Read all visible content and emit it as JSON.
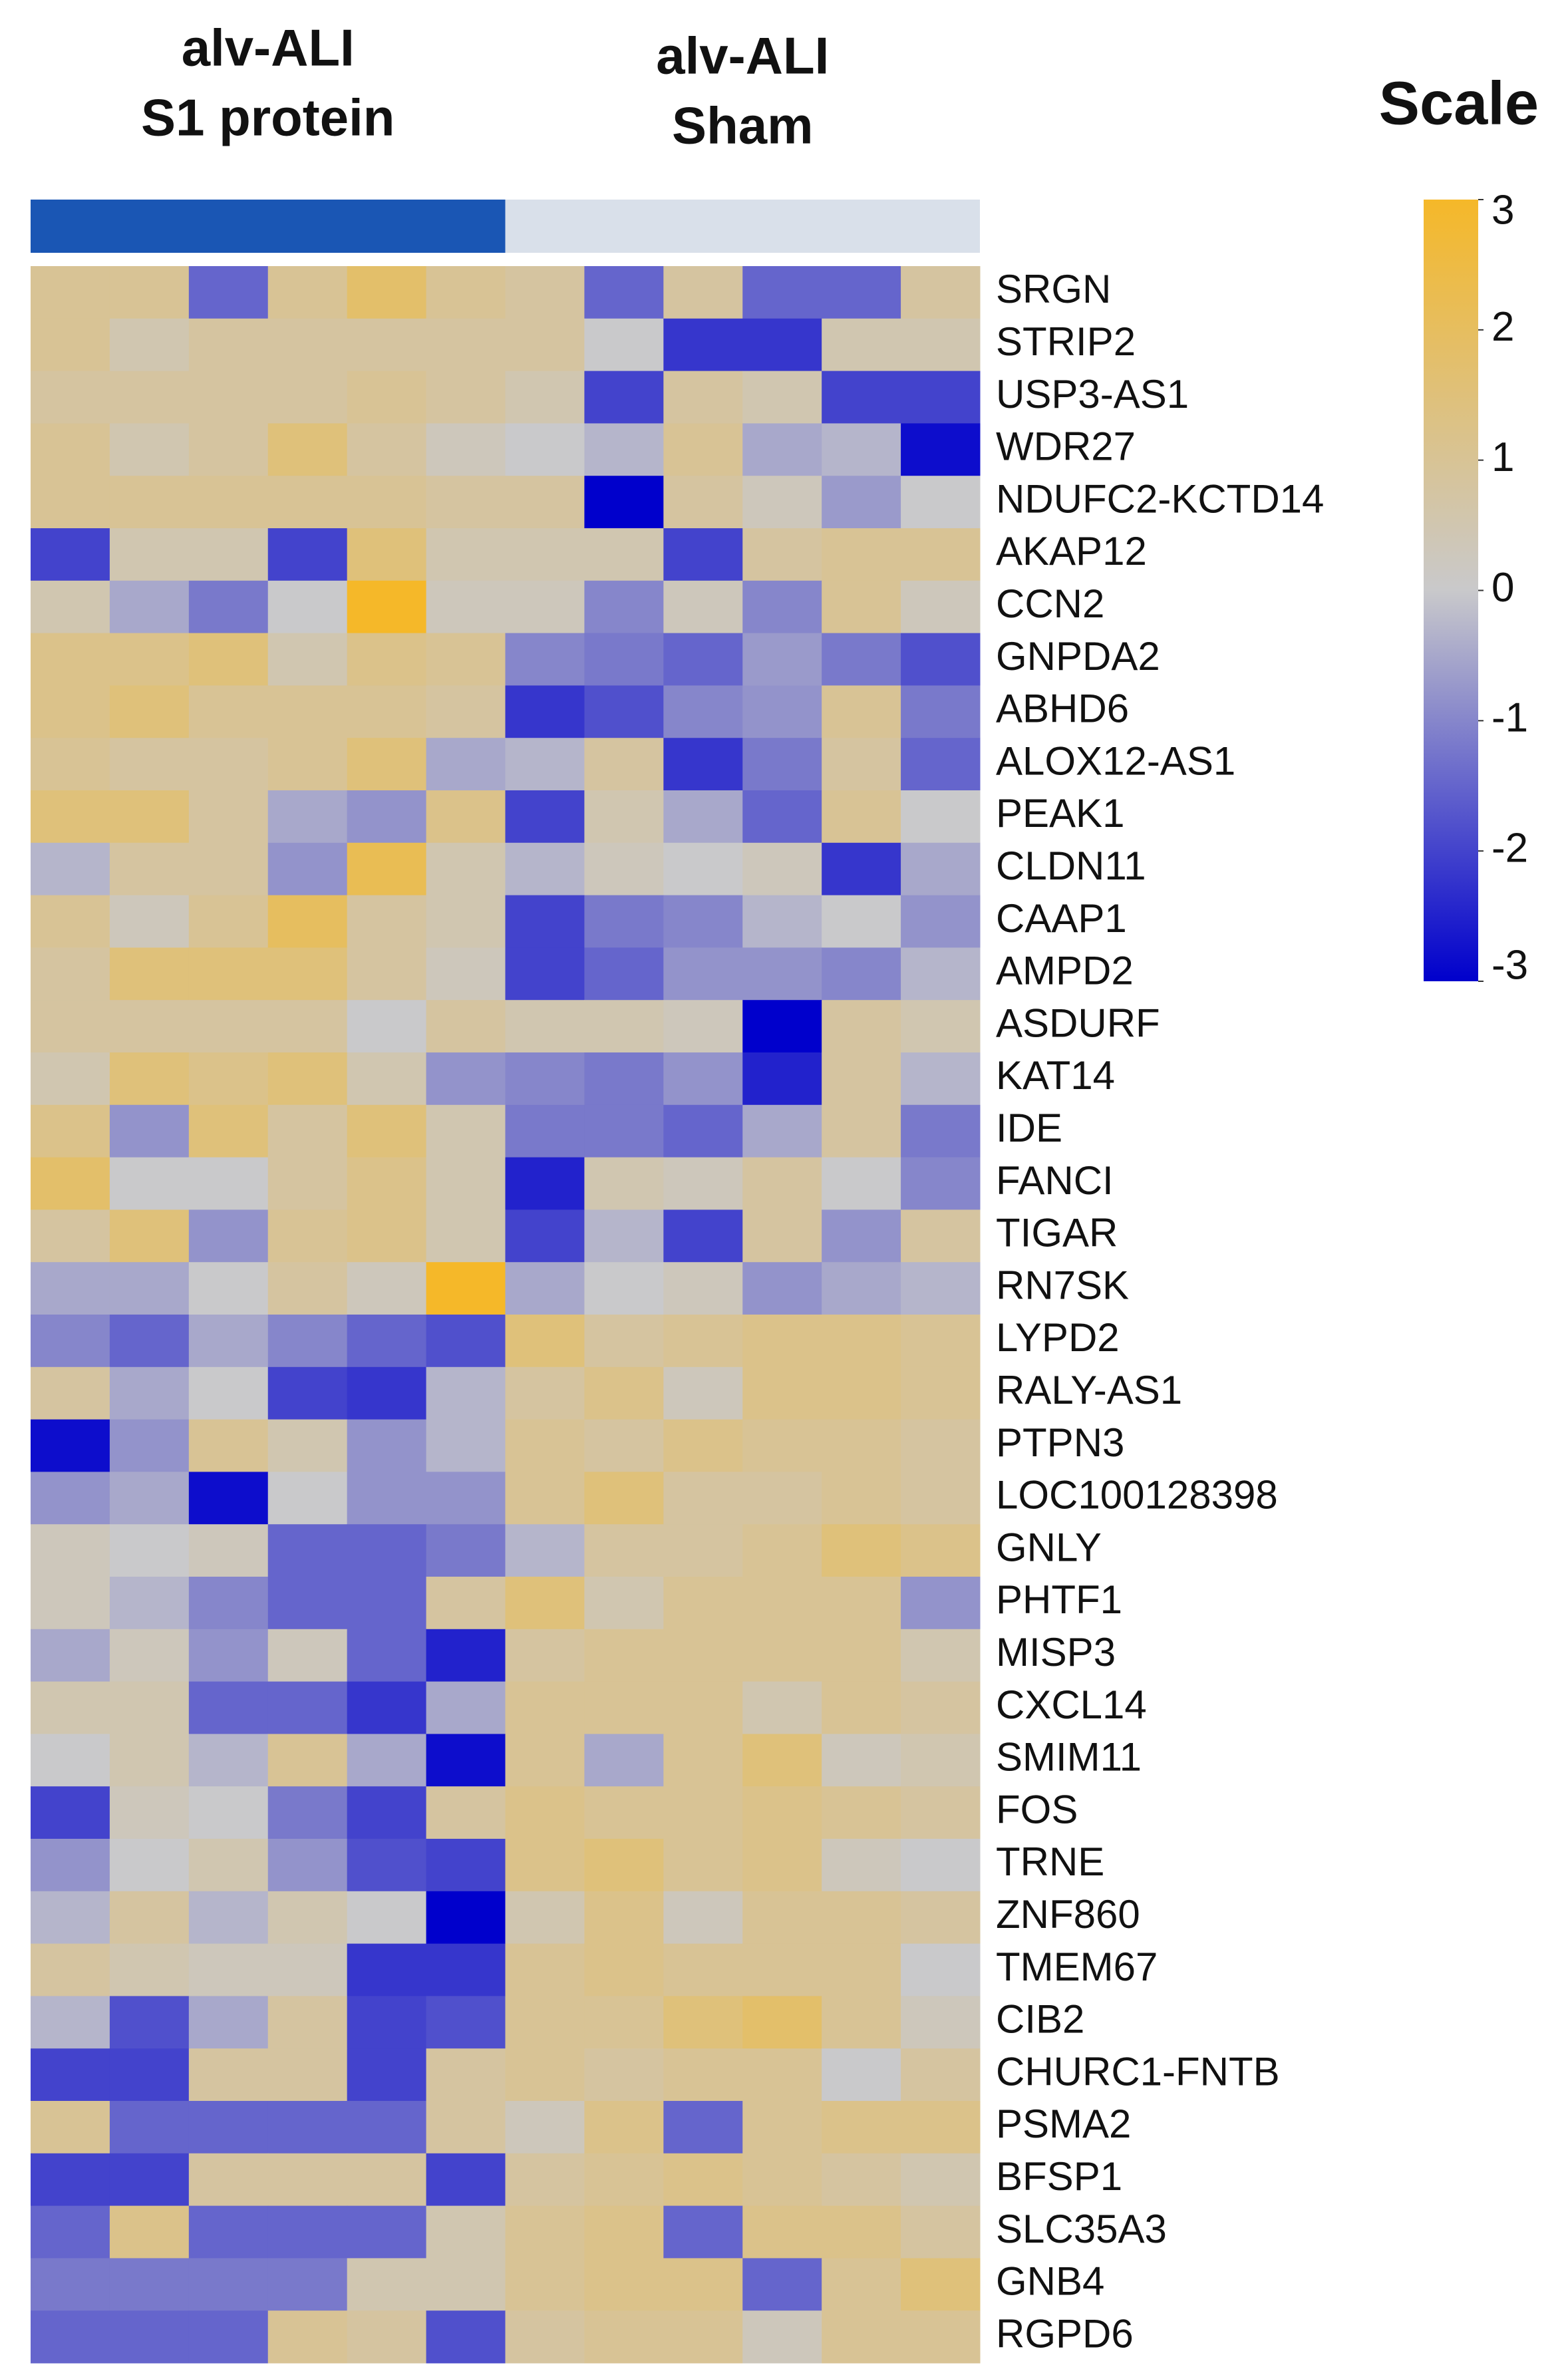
{
  "chart_data": {
    "type": "heatmap",
    "groups": [
      {
        "label": [
          "alv-ALI",
          "S1 protein"
        ],
        "color": "#1a56b4",
        "count": 6
      },
      {
        "label": [
          "alv-ALI",
          "Sham"
        ],
        "color": "#d9e0ea",
        "count": 6
      }
    ],
    "rows": [
      "SRGN",
      "STRIP2",
      "USP3-AS1",
      "WDR27",
      "NDUFC2-KCTD14",
      "AKAP12",
      "CCN2",
      "GNPDA2",
      "ABHD6",
      "ALOX12-AS1",
      "PEAK1",
      "CLDN11",
      "CAAP1",
      "AMPD2",
      "ASDURF",
      "KAT14",
      "IDE",
      "FANCI",
      "TIGAR",
      "RN7SK",
      "LYPD2",
      "RALY-AS1",
      "PTPN3",
      "LOC100128398",
      "GNLY",
      "PHTF1",
      "MISP3",
      "CXCL14",
      "SMIM11",
      "FOS",
      "TRNE",
      "ZNF860",
      "TMEM67",
      "CIB2",
      "CHURC1-FNTB",
      "PSMA2",
      "BFSP1",
      "SLC35A3",
      "GNB4",
      "RGPD6"
    ],
    "values": [
      [
        1,
        1,
        -1.5,
        1,
        1.8,
        1,
        0.8,
        -1.5,
        0.8,
        -1.5,
        -1.5,
        0.8
      ],
      [
        1,
        0.5,
        0.8,
        0.8,
        0.8,
        0.8,
        0.8,
        0,
        -2.2,
        -2.2,
        0.5,
        0.5
      ],
      [
        0.8,
        0.8,
        0.8,
        0.8,
        1,
        0.8,
        0.5,
        -2,
        0.8,
        0.5,
        -2,
        -2
      ],
      [
        1,
        0.5,
        0.8,
        1.5,
        0.8,
        0.3,
        0,
        -0.3,
        1,
        -0.5,
        -0.3,
        -2.8
      ],
      [
        1,
        1,
        1,
        1,
        1,
        0.8,
        0.8,
        -3,
        0.8,
        0.3,
        -0.7,
        0
      ],
      [
        -2,
        0.5,
        0.5,
        -2,
        1.5,
        0.5,
        0.5,
        0.5,
        -2,
        0.8,
        1,
        1
      ],
      [
        0.5,
        -0.5,
        -1.2,
        0,
        3,
        0.3,
        0.3,
        -1,
        0.3,
        -1,
        1,
        0.3
      ],
      [
        1.2,
        1.2,
        1.5,
        0.5,
        1.2,
        1,
        -1,
        -1.2,
        -1.5,
        -0.7,
        -1.2,
        -1.8
      ],
      [
        1.2,
        1.5,
        1,
        1,
        1,
        0.8,
        -2.2,
        -1.8,
        -1,
        -0.8,
        1,
        -1.2
      ],
      [
        1,
        0.8,
        0.8,
        1,
        1.5,
        -0.5,
        -0.3,
        0.8,
        -2.2,
        -1.2,
        0.8,
        -1.5
      ],
      [
        1.5,
        1.5,
        0.8,
        -0.5,
        -0.8,
        1.2,
        -2,
        0.5,
        -0.5,
        -1.5,
        1,
        0
      ],
      [
        -0.3,
        0.8,
        0.8,
        -0.8,
        2.2,
        0.5,
        -0.3,
        0.3,
        0,
        0.3,
        -2.2,
        -0.5
      ],
      [
        1,
        0.3,
        1,
        2,
        0.8,
        0.5,
        -2,
        -1.2,
        -1,
        -0.3,
        0,
        -0.8
      ],
      [
        0.8,
        1.5,
        1.5,
        1.5,
        0.8,
        0.3,
        -2,
        -1.5,
        -0.8,
        -0.8,
        -1,
        -0.3
      ],
      [
        0.8,
        0.8,
        0.8,
        0.8,
        0,
        0.8,
        0.5,
        0.5,
        0.3,
        -3,
        0.8,
        0.5
      ],
      [
        0.5,
        1.5,
        1.2,
        1.5,
        0.5,
        -0.8,
        -1,
        -1.2,
        -0.8,
        -2.5,
        0.8,
        -0.3
      ],
      [
        1.2,
        -0.8,
        1.5,
        0.8,
        1.5,
        0.5,
        -1.2,
        -1.2,
        -1.5,
        -0.5,
        0.8,
        -1.2
      ],
      [
        1.8,
        0,
        0,
        0.8,
        1.2,
        0.5,
        -2.5,
        0.5,
        0.3,
        0.8,
        0,
        -1
      ],
      [
        0.8,
        1.5,
        -0.8,
        1,
        1.2,
        0.5,
        -2,
        -0.3,
        -2,
        0.8,
        -0.8,
        0.8
      ],
      [
        -0.5,
        -0.5,
        0,
        0.8,
        0.3,
        3,
        -0.5,
        0,
        0.3,
        -0.8,
        -0.5,
        -0.3
      ],
      [
        -1,
        -1.5,
        -0.5,
        -1,
        -1.5,
        -1.8,
        1.5,
        0.8,
        1,
        1.2,
        1.2,
        1
      ],
      [
        0.8,
        -0.5,
        0,
        -2,
        -2.2,
        -0.3,
        0.8,
        1.2,
        0.3,
        1.2,
        1.2,
        1
      ],
      [
        -2.8,
        -0.8,
        1,
        0.5,
        -0.8,
        -0.3,
        1,
        0.8,
        1.2,
        1,
        1,
        0.8
      ],
      [
        -0.8,
        -0.5,
        -2.8,
        0,
        -0.8,
        -0.8,
        1,
        1.5,
        0.8,
        0.8,
        1,
        0.8
      ],
      [
        0.3,
        0,
        0.3,
        -1.5,
        -1.5,
        -1.2,
        -0.3,
        0.8,
        0.8,
        1,
        1.5,
        1.2
      ],
      [
        0.3,
        -0.3,
        -1,
        -1.5,
        -1.5,
        0.8,
        1.5,
        0.5,
        1,
        1,
        1,
        -0.8
      ],
      [
        -0.5,
        0.3,
        -0.8,
        0.3,
        -1.5,
        -2.5,
        0.8,
        1,
        1,
        1,
        1,
        0.5
      ],
      [
        0.5,
        0.5,
        -1.5,
        -1.5,
        -2.2,
        -0.5,
        1,
        1,
        1,
        0.5,
        1,
        0.8
      ],
      [
        0,
        0.5,
        -0.3,
        1,
        -0.5,
        -2.8,
        1,
        -0.5,
        1,
        1.5,
        0.3,
        0.5
      ],
      [
        -2,
        0.3,
        0,
        -1.2,
        -2,
        0.8,
        1.2,
        1,
        1,
        1.2,
        1,
        0.8
      ],
      [
        -0.8,
        0,
        0.5,
        -0.8,
        -1.8,
        -2,
        1.2,
        1.5,
        1,
        1.2,
        0.3,
        0
      ],
      [
        -0.3,
        0.8,
        -0.3,
        0.5,
        0,
        -3,
        0.5,
        1.2,
        0.3,
        1,
        1,
        0.8
      ],
      [
        0.8,
        0.5,
        0.3,
        0.3,
        -2.2,
        -2.2,
        1,
        1.2,
        1,
        1,
        1,
        0
      ],
      [
        -0.3,
        -1.8,
        -0.5,
        0.8,
        -2,
        -1.8,
        1,
        1,
        1.5,
        1.8,
        1,
        0.3
      ],
      [
        -2,
        -2,
        0.8,
        0.8,
        -2,
        0.8,
        1,
        0.8,
        1,
        1,
        0,
        0.8
      ],
      [
        1,
        -1.5,
        -1.5,
        -1.5,
        -1.5,
        0.8,
        0.3,
        1.2,
        -1.5,
        1,
        1.2,
        1.2
      ],
      [
        -2,
        -2,
        0.8,
        0.8,
        0.8,
        -2,
        0.8,
        1,
        1.2,
        1,
        0.8,
        0.5
      ],
      [
        -1.5,
        1.2,
        -1.5,
        -1.5,
        -1.5,
        0.5,
        1,
        1.2,
        -1.5,
        1.2,
        1.2,
        0.8
      ],
      [
        -1.2,
        -1.2,
        -1.2,
        -1.2,
        0.5,
        0.5,
        1,
        1.2,
        1.2,
        -1.5,
        1,
        1.5
      ],
      [
        -1.5,
        -1.5,
        -1.5,
        1,
        0.8,
        -1.8,
        0.8,
        1,
        1,
        0.3,
        1,
        1
      ]
    ],
    "zlim": [
      -3,
      3
    ],
    "colors": [
      "#0000cc",
      "#c9c9cb",
      "#f5b829"
    ],
    "colorbar": {
      "title": "Scale",
      "ticks": [
        3,
        2,
        1,
        0,
        -1,
        -2,
        -3
      ]
    }
  }
}
